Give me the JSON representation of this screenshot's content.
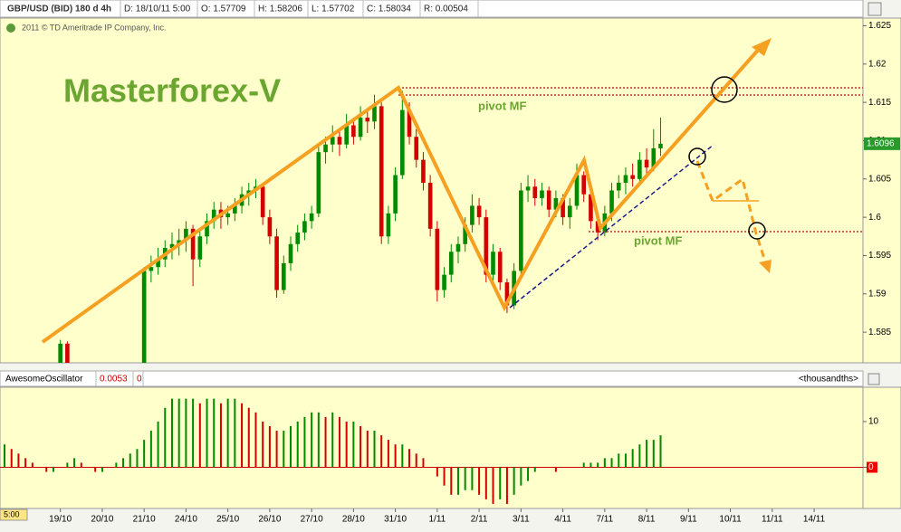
{
  "header": {
    "symbol": "GBP/USD (BID) 180 d 4h",
    "date": "D: 18/10/11 5:00",
    "open": "O: 1.57709",
    "high": "H: 1.58206",
    "low": "L: 1.57702",
    "close": "C: 1.58034",
    "range": "R: 0.00504",
    "copyright": "2011 © TD Ameritrade IP Company, Inc.",
    "time": "5:00"
  },
  "annotations": {
    "brand": "Masterforex-V",
    "pivot_upper": "pivot MF",
    "pivot_lower": "pivot MF"
  },
  "chart_data": [
    {
      "type": "candlestick",
      "up_color": "#008a00",
      "down_color": "#d40000",
      "xlim": [
        -0.65,
        123
      ],
      "xticks": [
        {
          "value": 8,
          "label": "19/10"
        },
        {
          "value": 14,
          "label": "20/10"
        },
        {
          "value": 20,
          "label": "21/10"
        },
        {
          "value": 26,
          "label": "24/10"
        },
        {
          "value": 32,
          "label": "25/10"
        },
        {
          "value": 38,
          "label": "26/10"
        },
        {
          "value": 44,
          "label": "27/10"
        },
        {
          "value": 50,
          "label": "28/10"
        },
        {
          "value": 56,
          "label": "31/10"
        },
        {
          "value": 62,
          "label": "1/11"
        },
        {
          "value": 68,
          "label": "2/11"
        },
        {
          "value": 74,
          "label": "3/11"
        },
        {
          "value": 80,
          "label": "4/11"
        },
        {
          "value": 86,
          "label": "7/11"
        },
        {
          "value": 92,
          "label": "8/11"
        },
        {
          "value": 98,
          "label": "9/11"
        },
        {
          "value": 104,
          "label": "10/11"
        },
        {
          "value": 110,
          "label": "11/11"
        },
        {
          "value": 116,
          "label": "14/11"
        }
      ],
      "ylim": [
        1.581,
        1.626
      ],
      "yticks": [
        1.585,
        1.59,
        1.595,
        1.6,
        1.605,
        1.61,
        1.615,
        1.62,
        1.625
      ],
      "last_price": 1.6096,
      "x": [
        8,
        9,
        20,
        21,
        22,
        23,
        24,
        25,
        26,
        27,
        28,
        29,
        30,
        31,
        32,
        33,
        34,
        35,
        36,
        37,
        38,
        39,
        40,
        41,
        42,
        43,
        44,
        45,
        46,
        47,
        48,
        49,
        50,
        51,
        52,
        53,
        54,
        55,
        56,
        57,
        58,
        59,
        60,
        61,
        62,
        63,
        64,
        65,
        66,
        67,
        68,
        69,
        70,
        71,
        72,
        73,
        74,
        75,
        76,
        77,
        78,
        79,
        80,
        81,
        82,
        83,
        84,
        85,
        86,
        87,
        88,
        89,
        90,
        91,
        92,
        93,
        94
      ],
      "open": [
        1.58,
        1.5835,
        1.581,
        1.593,
        1.5935,
        1.5945,
        1.596,
        1.5965,
        1.597,
        1.5985,
        1.5945,
        1.5975,
        1.5995,
        1.601,
        1.6,
        1.6005,
        1.6015,
        1.603,
        1.6035,
        1.604,
        1.6,
        1.5975,
        1.5905,
        1.594,
        1.5965,
        1.598,
        1.5995,
        1.6005,
        1.6085,
        1.6095,
        1.6105,
        1.6095,
        1.612,
        1.6105,
        1.613,
        1.6125,
        1.6145,
        1.5975,
        1.6005,
        1.6055,
        1.614,
        1.6105,
        1.6075,
        1.6045,
        1.5985,
        1.5905,
        1.5925,
        1.5955,
        1.5965,
        1.599,
        1.6015,
        1.6,
        1.5925,
        1.5955,
        1.5915,
        1.5885,
        1.593,
        1.6035,
        1.604,
        1.6025,
        1.6035,
        1.601,
        1.6025,
        1.6,
        1.6015,
        1.6055,
        1.603,
        1.5995,
        1.598,
        1.6005,
        1.6035,
        1.6045,
        1.6055,
        1.605,
        1.6075,
        1.6065,
        1.609
      ],
      "high": [
        1.584,
        1.5838,
        1.5935,
        1.595,
        1.596,
        1.597,
        1.598,
        1.5985,
        1.5995,
        1.599,
        1.5985,
        1.6005,
        1.602,
        1.602,
        1.6015,
        1.6025,
        1.604,
        1.6045,
        1.605,
        1.6045,
        1.601,
        1.5985,
        1.595,
        1.5975,
        1.599,
        1.6005,
        1.6015,
        1.6095,
        1.6105,
        1.612,
        1.6115,
        1.6135,
        1.613,
        1.6145,
        1.614,
        1.616,
        1.615,
        1.6015,
        1.6065,
        1.6165,
        1.615,
        1.6115,
        1.6085,
        1.6055,
        1.5995,
        1.5935,
        1.5965,
        1.5975,
        1.6,
        1.603,
        1.6025,
        1.601,
        1.5965,
        1.596,
        1.592,
        1.594,
        1.6045,
        1.6055,
        1.605,
        1.6045,
        1.604,
        1.6035,
        1.603,
        1.6025,
        1.607,
        1.606,
        1.6035,
        1.6,
        1.6015,
        1.6045,
        1.6055,
        1.6065,
        1.607,
        1.6085,
        1.609,
        1.6115,
        1.613
      ],
      "low": [
        1.5795,
        1.58,
        1.5805,
        1.5915,
        1.5925,
        1.5935,
        1.5945,
        1.595,
        1.5955,
        1.591,
        1.5935,
        1.5965,
        1.5985,
        1.5985,
        1.599,
        1.5995,
        1.6005,
        1.6015,
        1.6025,
        1.599,
        1.5965,
        1.5895,
        1.59,
        1.593,
        1.5955,
        1.597,
        1.5985,
        1.6,
        1.607,
        1.6085,
        1.608,
        1.609,
        1.6095,
        1.61,
        1.611,
        1.6115,
        1.5965,
        1.5965,
        1.5995,
        1.605,
        1.6095,
        1.6065,
        1.6035,
        1.5975,
        1.589,
        1.5895,
        1.5915,
        1.594,
        1.5955,
        1.598,
        1.599,
        1.5915,
        1.5915,
        1.5905,
        1.5875,
        1.588,
        1.5925,
        1.602,
        1.6015,
        1.6015,
        1.6,
        1.6,
        1.599,
        1.5985,
        1.601,
        1.602,
        1.5985,
        1.597,
        1.5975,
        1.5995,
        1.6025,
        1.603,
        1.604,
        1.6045,
        1.6055,
        1.606,
        1.608
      ],
      "close": [
        1.5835,
        1.5805,
        1.593,
        1.5935,
        1.5945,
        1.596,
        1.5965,
        1.597,
        1.5985,
        1.5945,
        1.5975,
        1.5995,
        1.601,
        1.6,
        1.6005,
        1.6015,
        1.603,
        1.6035,
        1.604,
        1.6,
        1.5975,
        1.5905,
        1.594,
        1.5965,
        1.598,
        1.5995,
        1.6005,
        1.6085,
        1.6095,
        1.6105,
        1.6095,
        1.612,
        1.6105,
        1.613,
        1.6125,
        1.6145,
        1.5975,
        1.6005,
        1.6055,
        1.614,
        1.6105,
        1.6075,
        1.6045,
        1.5985,
        1.5905,
        1.5925,
        1.5955,
        1.5965,
        1.599,
        1.6015,
        1.6,
        1.5925,
        1.5955,
        1.5915,
        1.5885,
        1.593,
        1.6035,
        1.604,
        1.6025,
        1.6035,
        1.601,
        1.6025,
        1.6,
        1.6015,
        1.6055,
        1.603,
        1.5995,
        1.598,
        1.6005,
        1.6035,
        1.6045,
        1.6055,
        1.605,
        1.6075,
        1.6065,
        1.609,
        1.6096
      ]
    },
    {
      "type": "bar",
      "name": "AwesomeOscillator",
      "readout": [
        "0.0053",
        "0"
      ],
      "units": "<thousandths>",
      "up_color": "#008a00",
      "down_color": "#d40000",
      "xlim": [
        -0.65,
        123
      ],
      "ylim": [
        -9,
        17.5
      ],
      "yticks": [
        0,
        10
      ],
      "x": [
        0,
        1,
        2,
        3,
        4,
        5,
        6,
        7,
        8,
        9,
        10,
        11,
        12,
        13,
        14,
        15,
        16,
        17,
        18,
        19,
        20,
        21,
        22,
        23,
        24,
        25,
        26,
        27,
        28,
        29,
        30,
        31,
        32,
        33,
        34,
        35,
        36,
        37,
        38,
        39,
        40,
        41,
        42,
        43,
        44,
        45,
        46,
        47,
        48,
        49,
        50,
        51,
        52,
        53,
        54,
        55,
        56,
        57,
        58,
        59,
        60,
        61,
        62,
        63,
        64,
        65,
        66,
        67,
        68,
        69,
        70,
        71,
        72,
        73,
        74,
        75,
        76,
        77,
        78,
        79,
        80,
        81,
        82,
        83,
        84,
        85,
        86,
        87,
        88,
        89,
        90,
        91,
        92,
        93,
        94
      ],
      "values": [
        5,
        4,
        3,
        2,
        1,
        0,
        -1,
        -1,
        0,
        1,
        2,
        1,
        0,
        -1,
        -1,
        0,
        1,
        2,
        3,
        4,
        6,
        8,
        10,
        13,
        15,
        15,
        15,
        15,
        14,
        15,
        15,
        14,
        15,
        15,
        14,
        13,
        12,
        10,
        9,
        8,
        8,
        9,
        10,
        11,
        12,
        12,
        11,
        12,
        11,
        10,
        10,
        9,
        8,
        8,
        7,
        6,
        5,
        5,
        4,
        3,
        2,
        0,
        -2,
        -4,
        -6,
        -6,
        -5,
        -5,
        -6,
        -7,
        -8,
        -7,
        -8,
        -6,
        -4,
        -3,
        -1,
        0,
        0,
        -1,
        0,
        0,
        0,
        1,
        1,
        1,
        2,
        2,
        3,
        3,
        4,
        5,
        6,
        6,
        7
      ]
    }
  ]
}
